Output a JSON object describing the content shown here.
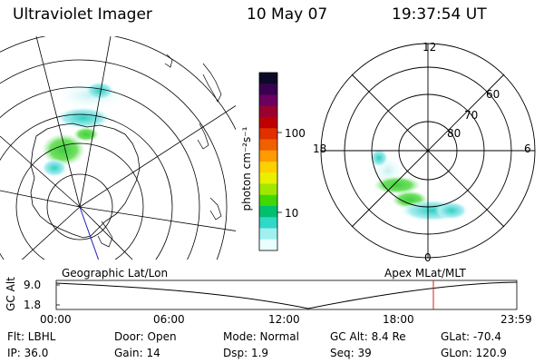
{
  "header": {
    "title": "Ultraviolet Imager",
    "date": "10 May 07",
    "time": "19:37:54 UT"
  },
  "colorbar": {
    "unit_label": "photon cm⁻²s⁻¹",
    "ticks": [
      "100",
      "10"
    ],
    "colors": [
      "#0a0a28",
      "#3a0050",
      "#6a0060",
      "#9a0030",
      "#c00000",
      "#e03000",
      "#f06000",
      "#ff9a00",
      "#ffd000",
      "#e8f000",
      "#a0e800",
      "#40d800",
      "#00c070",
      "#30d8c8",
      "#a0f0f0",
      "#e8ffff"
    ]
  },
  "polar_plot": {
    "mlt_labels": [
      "12",
      "18",
      "6",
      "0"
    ],
    "lat_labels": [
      "60",
      "70",
      "80"
    ]
  },
  "timeline": {
    "label_left": "Geographic Lat/Lon",
    "label_right": "Apex MLat/MLT",
    "axis_label": "GC Alt",
    "y_ticks": [
      "9.0",
      "1.8"
    ],
    "x_ticks": [
      "00:00",
      "06:00",
      "12:00",
      "18:00",
      "23:59"
    ],
    "current_time": "19:37:54"
  },
  "info": {
    "filter": "Flt: LBHL",
    "ip": "IP: 36.0",
    "door": "Door: Open",
    "gain": "Gain: 14",
    "mode": "Mode: Normal",
    "dsp": "Dsp:      1.9",
    "gc_alt": "GC Alt: 8.4 Re",
    "seq": "Seq: 39",
    "glat": "GLat: -70.4",
    "glon": "GLon: 120.9"
  }
}
